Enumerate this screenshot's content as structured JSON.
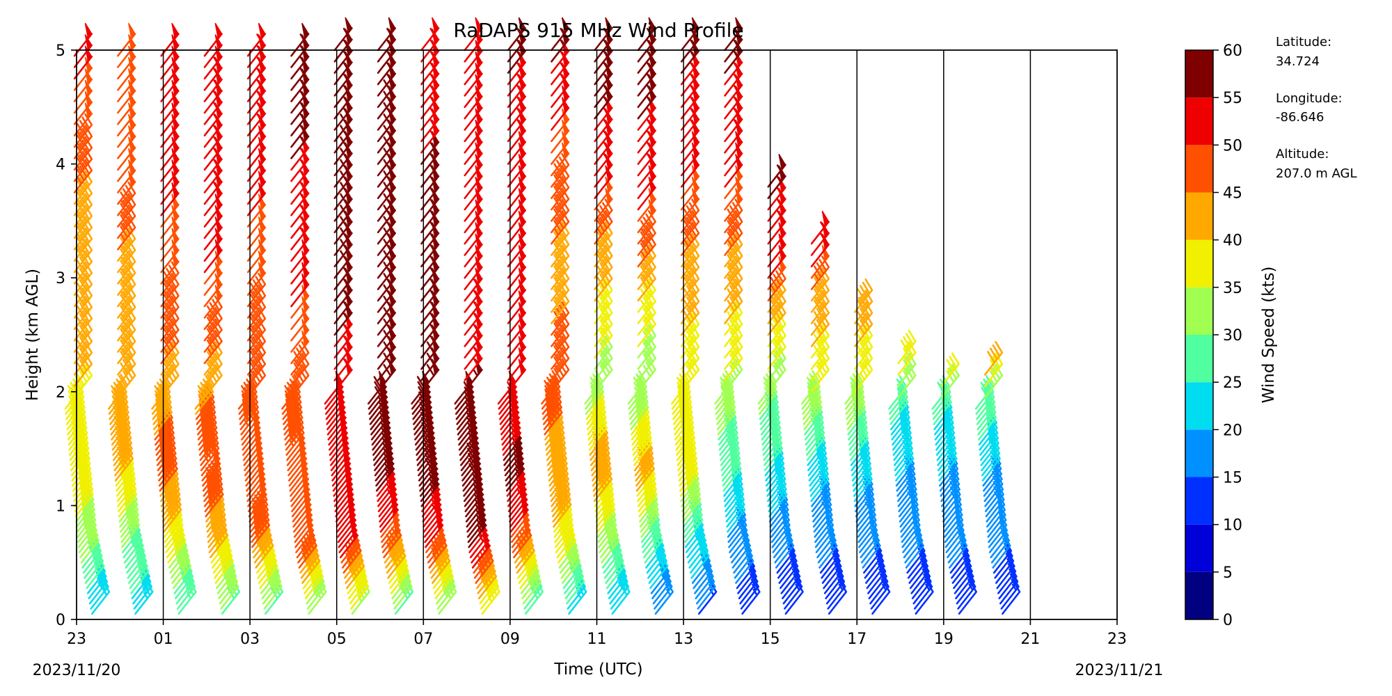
{
  "chart_data": {
    "type": "wind-barb profile",
    "title": "RaDAPS 915 MHz Wind Profile",
    "xlabel": "Time (UTC)",
    "ylabel": "Height (km AGL)",
    "x_tick_labels": [
      "23",
      "01",
      "03",
      "05",
      "07",
      "09",
      "11",
      "13",
      "15",
      "17",
      "19",
      "21",
      "23"
    ],
    "x_range_hours": [
      0,
      24
    ],
    "start_date_label": "2023/11/20",
    "end_date_label": "2023/11/21",
    "y_ticks": [
      "0",
      "1",
      "2",
      "3",
      "4",
      "5"
    ],
    "ylim": [
      0,
      5
    ],
    "vertical_gridlines": true,
    "colorbar": {
      "label": "Wind Speed (kts)",
      "ticks": [
        "0",
        "5",
        "10",
        "15",
        "20",
        "25",
        "30",
        "35",
        "40",
        "45",
        "50",
        "55",
        "60"
      ],
      "colors": [
        "#000080",
        "#0000d8",
        "#0030ff",
        "#0090ff",
        "#00dcf0",
        "#50ffa0",
        "#a0ff50",
        "#f0f000",
        "#ffa800",
        "#ff5000",
        "#ee0000",
        "#7f0000"
      ]
    },
    "station": {
      "latitude_label": "Latitude:",
      "latitude": "34.724",
      "longitude_label": "Longitude:",
      "longitude": "-86.646",
      "altitude_label": "Altitude:",
      "altitude": "207.0 m AGL"
    },
    "profiles": [
      {
        "time": 0.5,
        "top": 5.0,
        "low_top": 1.85,
        "speeds": [
          [
            0,
            20
          ],
          [
            0.6,
            32
          ],
          [
            1.2,
            38
          ],
          [
            2.0,
            40
          ],
          [
            3.0,
            42
          ],
          [
            4.0,
            46
          ],
          [
            5.0,
            52
          ]
        ]
      },
      {
        "time": 1.5,
        "top": 5.0,
        "low_top": 1.85,
        "speeds": [
          [
            0,
            22
          ],
          [
            0.6,
            30
          ],
          [
            1.2,
            40
          ],
          [
            2.0,
            42
          ],
          [
            3.0,
            44
          ],
          [
            4.0,
            50
          ],
          [
            5.0,
            48
          ]
        ]
      },
      {
        "time": 2.5,
        "top": 5.0,
        "low_top": 1.85,
        "speeds": [
          [
            0,
            25
          ],
          [
            0.6,
            38
          ],
          [
            1.2,
            46
          ],
          [
            2.0,
            44
          ],
          [
            3.0,
            48
          ],
          [
            4.0,
            52
          ],
          [
            5.0,
            50
          ]
        ]
      },
      {
        "time": 3.5,
        "top": 5.0,
        "low_top": 1.85,
        "speeds": [
          [
            0,
            28
          ],
          [
            0.6,
            42
          ],
          [
            1.2,
            48
          ],
          [
            2.0,
            44
          ],
          [
            3.0,
            50
          ],
          [
            4.0,
            54
          ],
          [
            5.0,
            52
          ]
        ]
      },
      {
        "time": 4.5,
        "top": 5.0,
        "low_top": 1.85,
        "speeds": [
          [
            0,
            28
          ],
          [
            0.6,
            45
          ],
          [
            1.2,
            50
          ],
          [
            2.0,
            45
          ],
          [
            3.0,
            48
          ],
          [
            4.0,
            52
          ],
          [
            5.0,
            54
          ]
        ]
      },
      {
        "time": 5.5,
        "top": 5.0,
        "low_top": 1.85,
        "speeds": [
          [
            0,
            30
          ],
          [
            0.6,
            50
          ],
          [
            1.2,
            48
          ],
          [
            2.0,
            46
          ],
          [
            3.0,
            52
          ],
          [
            4.0,
            55
          ],
          [
            5.0,
            56
          ]
        ]
      },
      {
        "time": 6.5,
        "top": 5.0,
        "low_top": 1.9,
        "speeds": [
          [
            0,
            32
          ],
          [
            0.6,
            52
          ],
          [
            1.2,
            52
          ],
          [
            2.0,
            52
          ],
          [
            3.0,
            58
          ],
          [
            4.0,
            58
          ],
          [
            5.0,
            56
          ]
        ]
      },
      {
        "time": 7.5,
        "top": 5.0,
        "low_top": 1.9,
        "speeds": [
          [
            0,
            28
          ],
          [
            0.6,
            48
          ],
          [
            1.2,
            56
          ],
          [
            2.0,
            58
          ],
          [
            3.0,
            58
          ],
          [
            4.0,
            58
          ],
          [
            5.0,
            57
          ]
        ]
      },
      {
        "time": 8.5,
        "top": 5.0,
        "low_top": 1.9,
        "speeds": [
          [
            0,
            30
          ],
          [
            0.6,
            50
          ],
          [
            1.2,
            58
          ],
          [
            2.0,
            58
          ],
          [
            3.0,
            56
          ],
          [
            4.0,
            55
          ],
          [
            5.0,
            54
          ]
        ]
      },
      {
        "time": 9.5,
        "top": 5.0,
        "low_top": 1.9,
        "speeds": [
          [
            0,
            35
          ],
          [
            0.6,
            55
          ],
          [
            1.2,
            58
          ],
          [
            2.0,
            55
          ],
          [
            3.0,
            52
          ],
          [
            4.0,
            50
          ],
          [
            5.0,
            52
          ]
        ]
      },
      {
        "time": 10.5,
        "top": 5.0,
        "low_top": 1.9,
        "speeds": [
          [
            0,
            26
          ],
          [
            0.6,
            48
          ],
          [
            1.2,
            56
          ],
          [
            2.0,
            52
          ],
          [
            3.0,
            50
          ],
          [
            4.0,
            52
          ],
          [
            5.0,
            56
          ]
        ]
      },
      {
        "time": 11.5,
        "top": 5.0,
        "low_top": 1.9,
        "speeds": [
          [
            0,
            22
          ],
          [
            0.6,
            38
          ],
          [
            1.2,
            44
          ],
          [
            2.0,
            46
          ],
          [
            3.0,
            44
          ],
          [
            4.0,
            48
          ],
          [
            5.0,
            56
          ]
        ]
      },
      {
        "time": 12.5,
        "top": 5.0,
        "low_top": 1.9,
        "speeds": [
          [
            0,
            20
          ],
          [
            0.6,
            32
          ],
          [
            1.2,
            44
          ],
          [
            2.0,
            32
          ],
          [
            3.0,
            42
          ],
          [
            4.0,
            54
          ],
          [
            5.0,
            57
          ]
        ]
      },
      {
        "time": 13.5,
        "top": 5.0,
        "low_top": 1.9,
        "speeds": [
          [
            0,
            15
          ],
          [
            0.6,
            28
          ],
          [
            1.2,
            42
          ],
          [
            2.0,
            30
          ],
          [
            3.0,
            44
          ],
          [
            4.0,
            54
          ],
          [
            5.0,
            57
          ]
        ]
      },
      {
        "time": 14.5,
        "top": 5.0,
        "low_top": 1.9,
        "speeds": [
          [
            0,
            14
          ],
          [
            0.6,
            24
          ],
          [
            1.2,
            38
          ],
          [
            2.0,
            36
          ],
          [
            3.0,
            44
          ],
          [
            4.0,
            52
          ],
          [
            5.0,
            56
          ]
        ]
      },
      {
        "time": 15.5,
        "top": 5.0,
        "low_top": 1.9,
        "speeds": [
          [
            0,
            12
          ],
          [
            0.6,
            18
          ],
          [
            1.2,
            26
          ],
          [
            2.0,
            34
          ],
          [
            3.0,
            44
          ],
          [
            4.0,
            52
          ],
          [
            5.0,
            56
          ]
        ]
      },
      {
        "time": 16.5,
        "top": 3.9,
        "low_top": 1.9,
        "speeds": [
          [
            0,
            12
          ],
          [
            0.6,
            16
          ],
          [
            1.2,
            24
          ],
          [
            2.0,
            32
          ],
          [
            3.0,
            50
          ],
          [
            3.9,
            57
          ]
        ]
      },
      {
        "time": 17.5,
        "top": 3.35,
        "low_top": 1.9,
        "speeds": [
          [
            0,
            12
          ],
          [
            0.6,
            16
          ],
          [
            1.2,
            22
          ],
          [
            2.0,
            36
          ],
          [
            2.8,
            44
          ],
          [
            3.35,
            56
          ]
        ]
      },
      {
        "time": 18.5,
        "top": 2.8,
        "low_top": 1.9,
        "speeds": [
          [
            0,
            12
          ],
          [
            0.6,
            16
          ],
          [
            1.2,
            22
          ],
          [
            2.0,
            36
          ],
          [
            2.8,
            44
          ]
        ]
      },
      {
        "time": 19.5,
        "top": 2.35,
        "low_top": 1.85,
        "speeds": [
          [
            0,
            12
          ],
          [
            0.6,
            16
          ],
          [
            1.2,
            20
          ],
          [
            1.8,
            26
          ],
          [
            2.35,
            42
          ]
        ]
      },
      {
        "time": 20.5,
        "top": 2.1,
        "low_top": 1.85,
        "speeds": [
          [
            0,
            12
          ],
          [
            0.6,
            16
          ],
          [
            1.2,
            20
          ],
          [
            1.8,
            26
          ],
          [
            2.1,
            38
          ]
        ]
      },
      {
        "time": 21.5,
        "top": 2.2,
        "low_top": 1.85,
        "speeds": [
          [
            0,
            12
          ],
          [
            0.6,
            16
          ],
          [
            1.2,
            20
          ],
          [
            1.8,
            28
          ],
          [
            2.2,
            42
          ]
        ]
      }
    ]
  }
}
